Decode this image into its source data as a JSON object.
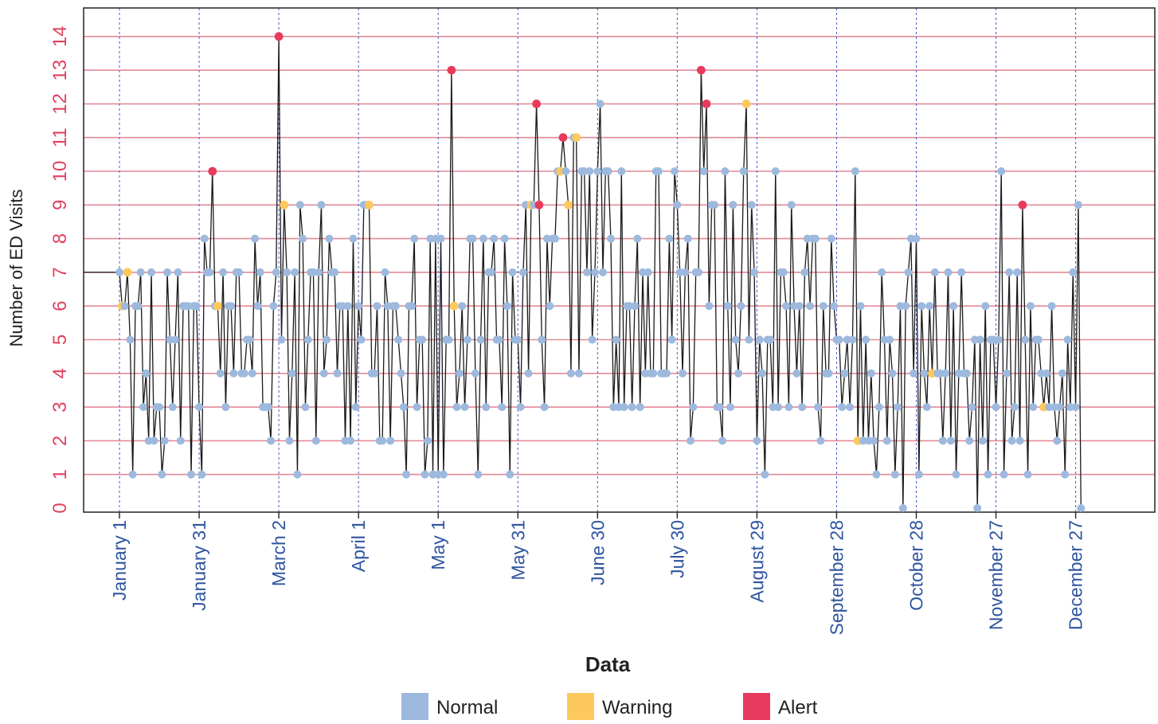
{
  "colors": {
    "normal": "#9db9dd",
    "warning": "#fdc85e",
    "alert": "#e83a5c",
    "gridline": "#e38a98",
    "vline": "#4a5fc4",
    "line": "#1a1a1a"
  },
  "chart_data": {
    "type": "line",
    "title": "",
    "xlabel": "Data",
    "ylabel": "Number of  ED Visits",
    "ylim": [
      0,
      14.5
    ],
    "yticks": [
      0,
      1,
      2,
      3,
      4,
      5,
      6,
      7,
      8,
      9,
      10,
      11,
      12,
      13,
      14
    ],
    "x_unit": "day of year (Day 1 = January 1)",
    "xlim": [
      -12,
      372
    ],
    "xticks": [
      {
        "day": 1,
        "label": "January 1"
      },
      {
        "day": 31,
        "label": "January 31"
      },
      {
        "day": 61,
        "label": "March 2"
      },
      {
        "day": 91,
        "label": "April 1"
      },
      {
        "day": 121,
        "label": "May 1"
      },
      {
        "day": 151,
        "label": "May 31"
      },
      {
        "day": 181,
        "label": "June 30"
      },
      {
        "day": 211,
        "label": "July 30"
      },
      {
        "day": 241,
        "label": "August 29"
      },
      {
        "day": 271,
        "label": "September 28"
      },
      {
        "day": 301,
        "label": "October 28"
      },
      {
        "day": 331,
        "label": "November 27"
      },
      {
        "day": 361,
        "label": "December 27"
      }
    ],
    "legend": {
      "position": "bottom-center",
      "entries": [
        {
          "label": "Normal",
          "status": "normal"
        },
        {
          "label": "Warning",
          "status": "warning"
        },
        {
          "label": "Alert",
          "status": "alert"
        }
      ]
    },
    "grid": {
      "horizontal": true,
      "vertical_at_ticks": true
    },
    "pre_series_level": 7,
    "statuses": [
      "normal",
      "warning",
      "alert"
    ],
    "series_ref": "values[i] is the count for day i+1; status[i] is 0 = normal, 1 = warning, 2 = alert",
    "values": [
      7,
      6,
      6,
      7,
      5,
      1,
      6,
      6,
      7,
      3,
      4,
      2,
      7,
      2,
      3,
      3,
      1,
      2,
      7,
      5,
      3,
      5,
      7,
      2,
      6,
      6,
      6,
      1,
      6,
      6,
      3,
      1,
      8,
      7,
      7,
      10,
      6,
      6,
      4,
      7,
      3,
      6,
      6,
      4,
      7,
      7,
      4,
      4,
      5,
      5,
      4,
      8,
      6,
      7,
      3,
      3,
      3,
      2,
      6,
      7,
      14,
      5,
      9,
      7,
      2,
      4,
      7,
      1,
      9,
      8,
      3,
      5,
      7,
      7,
      2,
      7,
      9,
      4,
      5,
      8,
      7,
      7,
      4,
      6,
      6,
      2,
      6,
      2,
      8,
      3,
      6,
      5,
      9,
      9,
      9,
      4,
      4,
      6,
      2,
      2,
      7,
      6,
      2,
      6,
      6,
      5,
      4,
      3,
      1,
      6,
      6,
      8,
      3,
      5,
      5,
      1,
      2,
      8,
      1,
      8,
      1,
      8,
      1,
      5,
      5,
      13,
      6,
      3,
      4,
      6,
      3,
      5,
      8,
      8,
      4,
      1,
      5,
      8,
      3,
      7,
      7,
      8,
      5,
      5,
      3,
      8,
      6,
      1,
      7,
      5,
      5,
      3,
      7,
      9,
      4,
      9,
      9,
      12,
      9,
      5,
      3,
      8,
      6,
      8,
      8,
      10,
      10,
      11,
      10,
      9,
      4,
      11,
      11,
      4,
      10,
      10,
      7,
      10,
      5,
      7,
      10,
      12,
      7,
      10,
      10,
      8,
      3,
      5,
      3,
      10,
      3,
      6,
      6,
      3,
      6,
      8,
      3,
      7,
      4,
      7,
      4,
      4,
      10,
      10,
      4,
      4,
      4,
      8,
      5,
      10,
      9,
      7,
      4,
      7,
      8,
      2,
      3,
      7,
      7,
      13,
      10,
      12,
      6,
      9,
      9,
      3,
      3,
      2,
      10,
      6,
      3,
      9,
      5,
      4,
      6,
      10,
      12,
      5,
      9,
      7,
      2,
      5,
      4,
      1,
      5,
      5,
      3,
      10,
      3,
      7,
      7,
      6,
      3,
      9,
      6,
      4,
      6,
      3,
      7,
      8,
      6,
      8,
      8,
      3,
      2,
      6,
      4,
      4,
      8,
      6,
      5,
      5,
      3,
      4,
      5,
      3,
      5,
      10,
      2,
      6,
      2,
      5,
      2,
      4,
      2,
      1,
      3,
      7,
      5,
      2,
      5,
      4,
      1,
      3,
      6,
      0,
      6,
      7,
      8,
      4,
      8,
      1,
      6,
      4,
      3,
      6,
      4,
      7,
      4,
      4,
      2,
      4,
      7,
      2,
      6,
      1,
      4,
      7,
      4,
      4,
      2,
      3,
      5,
      0,
      5,
      2,
      6,
      1,
      5,
      5,
      3,
      5,
      10,
      1,
      4,
      7,
      2,
      3,
      7,
      2,
      9,
      5,
      1,
      6,
      3,
      5,
      5,
      4,
      3,
      4,
      3,
      6,
      3,
      2,
      3,
      4,
      1,
      5,
      3,
      7,
      3,
      9,
      0
    ],
    "status": [
      0,
      1,
      0,
      1,
      0,
      0,
      0,
      0,
      0,
      0,
      0,
      0,
      0,
      0,
      0,
      0,
      0,
      0,
      0,
      0,
      0,
      0,
      0,
      0,
      0,
      0,
      0,
      0,
      0,
      0,
      0,
      0,
      0,
      0,
      0,
      2,
      0,
      1,
      0,
      0,
      0,
      0,
      0,
      0,
      0,
      0,
      0,
      0,
      0,
      0,
      0,
      0,
      0,
      0,
      0,
      0,
      0,
      0,
      0,
      0,
      2,
      0,
      1,
      0,
      0,
      0,
      0,
      0,
      0,
      0,
      0,
      0,
      0,
      0,
      0,
      0,
      0,
      0,
      0,
      0,
      0,
      0,
      0,
      0,
      0,
      0,
      0,
      0,
      0,
      0,
      0,
      0,
      0,
      0,
      1,
      0,
      0,
      0,
      0,
      0,
      0,
      0,
      0,
      0,
      0,
      0,
      0,
      0,
      0,
      0,
      0,
      0,
      0,
      0,
      0,
      0,
      0,
      0,
      0,
      0,
      0,
      0,
      0,
      0,
      0,
      2,
      1,
      0,
      0,
      0,
      0,
      0,
      0,
      0,
      0,
      0,
      0,
      0,
      0,
      0,
      0,
      0,
      0,
      0,
      0,
      0,
      0,
      0,
      0,
      0,
      0,
      0,
      0,
      0,
      0,
      1,
      0,
      2,
      2,
      0,
      0,
      0,
      0,
      0,
      0,
      0,
      1,
      2,
      0,
      1,
      0,
      0,
      1,
      0,
      0,
      0,
      0,
      0,
      0,
      0,
      0,
      0,
      0,
      0,
      0,
      0,
      0,
      0,
      0,
      0,
      0,
      0,
      0,
      0,
      0,
      0,
      0,
      0,
      0,
      0,
      0,
      0,
      0,
      0,
      0,
      0,
      0,
      0,
      0,
      0,
      0,
      0,
      0,
      0,
      0,
      0,
      0,
      0,
      0,
      2,
      0,
      2,
      0,
      0,
      0,
      0,
      0,
      0,
      0,
      0,
      0,
      0,
      0,
      0,
      0,
      0,
      1,
      0,
      0,
      0,
      0,
      0,
      0,
      0,
      0,
      0,
      0,
      0,
      0,
      0,
      0,
      0,
      0,
      0,
      0,
      0,
      0,
      0,
      0,
      0,
      0,
      0,
      0,
      0,
      0,
      0,
      0,
      0,
      0,
      0,
      0,
      0,
      0,
      0,
      0,
      0,
      0,
      0,
      1,
      0,
      0,
      0,
      0,
      0,
      0,
      0,
      0,
      0,
      0,
      0,
      0,
      0,
      0,
      0,
      0,
      0,
      0,
      0,
      0,
      0,
      0,
      0,
      0,
      0,
      0,
      0,
      1,
      0,
      0,
      0,
      0,
      0,
      0,
      0,
      0,
      0,
      0,
      0,
      0,
      0,
      0,
      0,
      0,
      0,
      0,
      0,
      0,
      0,
      0,
      0,
      0,
      0,
      0,
      0,
      0,
      0,
      0,
      0,
      0,
      0,
      2,
      0,
      0,
      0,
      0,
      0,
      0,
      0,
      1,
      0,
      0,
      0,
      0,
      0,
      0,
      0,
      0,
      0,
      0,
      0,
      0,
      0,
      0,
      0,
      0,
      0,
      0,
      0,
      0,
      0,
      0,
      0,
      0
    ]
  }
}
